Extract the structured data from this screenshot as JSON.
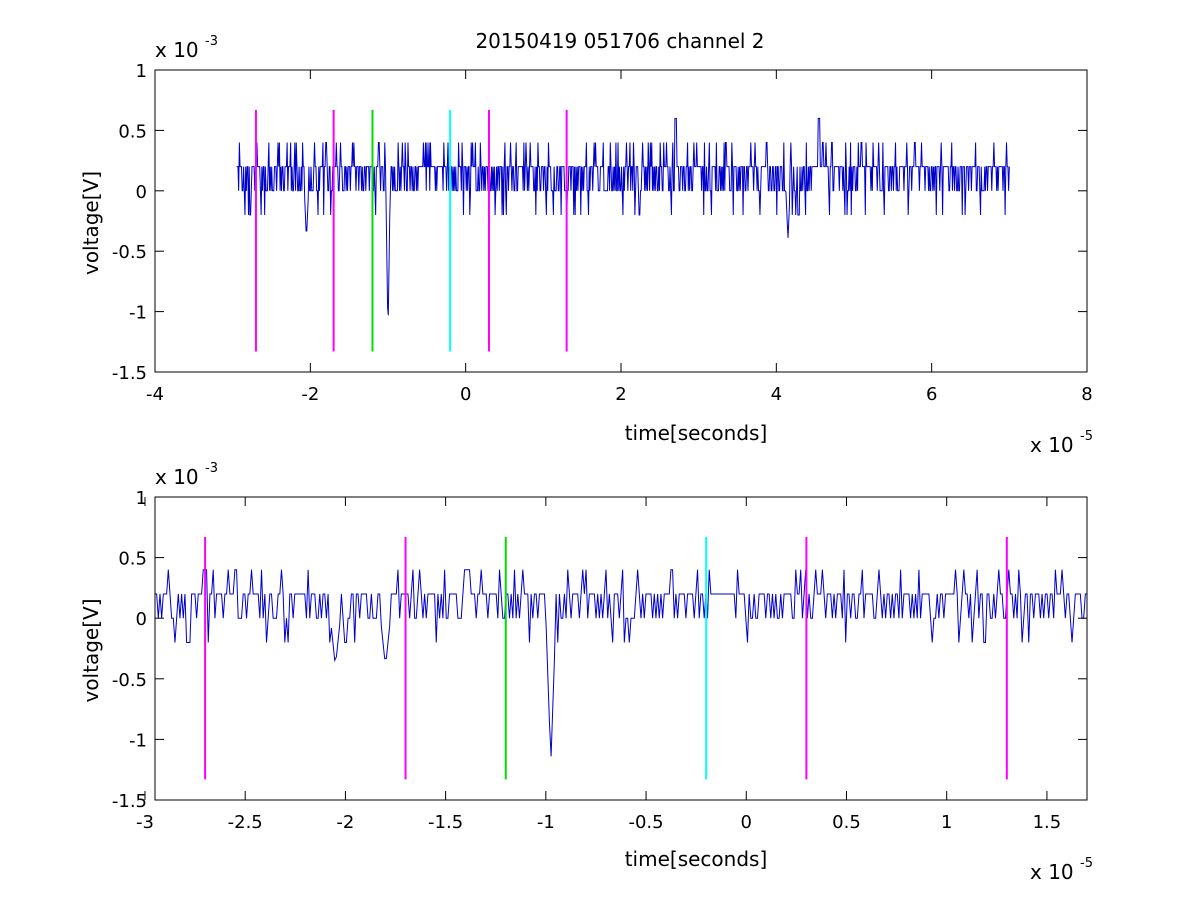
{
  "title": "20150419 051706 channel 2",
  "colors": {
    "signal": "#0000cc",
    "magenta": "#ff00ff",
    "green": "#00dd00",
    "cyan": "#00ffff",
    "axes": "#000000",
    "background": "#ffffff"
  },
  "chart_data": [
    {
      "type": "line",
      "title": "20150419 051706 channel 2",
      "xlabel": "time[seconds]",
      "ylabel": "voltage[V]",
      "x_exponent_label": "x 10",
      "x_exponent": "-5",
      "y_exponent_label": "x 10",
      "y_exponent": "-3",
      "xlim": [
        -4e-05,
        8e-05
      ],
      "ylim": [
        -0.0015,
        0.001
      ],
      "xticks": [
        -4e-05,
        -2e-05,
        0,
        2e-05,
        4e-05,
        6e-05,
        8e-05
      ],
      "xtick_labels": [
        "-4",
        "-2",
        "0",
        "2",
        "4",
        "6",
        "8"
      ],
      "yticks": [
        -0.0015,
        -0.001,
        -0.0005,
        0,
        0.0005,
        0.001
      ],
      "ytick_labels": [
        "-1.5",
        "-1",
        "-0.5",
        "0",
        "0.5",
        "1"
      ],
      "grid": false,
      "series": [
        {
          "color": "#0000cc",
          "x_range": [
            -2.95e-05,
            7e-05
          ],
          "approx_baseline": 0.0001,
          "noise_levels": [
            0,
            0.0002,
            0.0004
          ],
          "notable_dips": [
            [
              -1e-05,
              -0.0012
            ],
            [
              4.15e-05,
              -0.0004
            ],
            [
              -2.05e-05,
              -0.0004
            ]
          ],
          "notable_peaks": [
            [
              2.7e-05,
              0.0006
            ],
            [
              4.55e-05,
              0.0006
            ]
          ]
        }
      ],
      "vlines": [
        {
          "x": -2.7e-05,
          "color": "#ff00ff",
          "y_range": [
            -0.00133,
            0.00067
          ]
        },
        {
          "x": -1.7e-05,
          "color": "#ff00ff",
          "y_range": [
            -0.00133,
            0.00067
          ]
        },
        {
          "x": -1.2e-05,
          "color": "#00dd00",
          "y_range": [
            -0.00133,
            0.00067
          ]
        },
        {
          "x": -2e-06,
          "color": "#00ffff",
          "y_range": [
            -0.00133,
            0.00067
          ]
        },
        {
          "x": 3e-06,
          "color": "#ff00ff",
          "y_range": [
            -0.00133,
            0.00067
          ]
        },
        {
          "x": 1.3e-05,
          "color": "#ff00ff",
          "y_range": [
            -0.00133,
            0.00067
          ]
        }
      ]
    },
    {
      "type": "line",
      "xlabel": "time[seconds]",
      "ylabel": "voltage[V]",
      "x_exponent_label": "x 10",
      "x_exponent": "-5",
      "y_exponent_label": "x 10",
      "y_exponent": "-3",
      "xlim": [
        -2.95e-05,
        1.7e-05
      ],
      "ylim": [
        -0.0015,
        0.001
      ],
      "xticks": [
        -3e-05,
        -2.5e-05,
        -2e-05,
        -1.5e-05,
        -1e-05,
        -5e-06,
        0,
        5e-06,
        1e-05,
        1.5e-05
      ],
      "xtick_labels": [
        "-3",
        "-2.5",
        "-2",
        "-1.5",
        "-1",
        "-0.5",
        "0",
        "0.5",
        "1",
        "1.5"
      ],
      "yticks": [
        -0.0015,
        -0.001,
        -0.0005,
        0,
        0.0005,
        0.001
      ],
      "ytick_labels": [
        "-1.5",
        "-1",
        "-0.5",
        "0",
        "0.5",
        "1"
      ],
      "grid": false,
      "series": [
        {
          "color": "#0000cc",
          "x_range": [
            -2.95e-05,
            1.7e-05
          ],
          "approx_baseline": 0.0001,
          "noise_levels": [
            0,
            0.0002,
            0.0004
          ],
          "notable_dips": [
            [
              -9.75e-06,
              -0.0012
            ],
            [
              -2.05e-05,
              -0.0004
            ],
            [
              -1.8e-05,
              -0.0004
            ]
          ],
          "notable_peaks": [
            [
              -2.7e-05,
              0.0004
            ],
            [
              -1.4e-05,
              0.0004
            ]
          ]
        }
      ],
      "vlines": [
        {
          "x": -2.7e-05,
          "color": "#ff00ff",
          "y_range": [
            -0.00133,
            0.00067
          ]
        },
        {
          "x": -1.7e-05,
          "color": "#ff00ff",
          "y_range": [
            -0.00133,
            0.00067
          ]
        },
        {
          "x": -1.2e-05,
          "color": "#00dd00",
          "y_range": [
            -0.00133,
            0.00067
          ]
        },
        {
          "x": -2e-06,
          "color": "#00ffff",
          "y_range": [
            -0.00133,
            0.00067
          ]
        },
        {
          "x": 3e-06,
          "color": "#ff00ff",
          "y_range": [
            -0.00133,
            0.00067
          ]
        },
        {
          "x": 1.3e-05,
          "color": "#ff00ff",
          "y_range": [
            -0.00133,
            0.00067
          ]
        }
      ]
    }
  ]
}
